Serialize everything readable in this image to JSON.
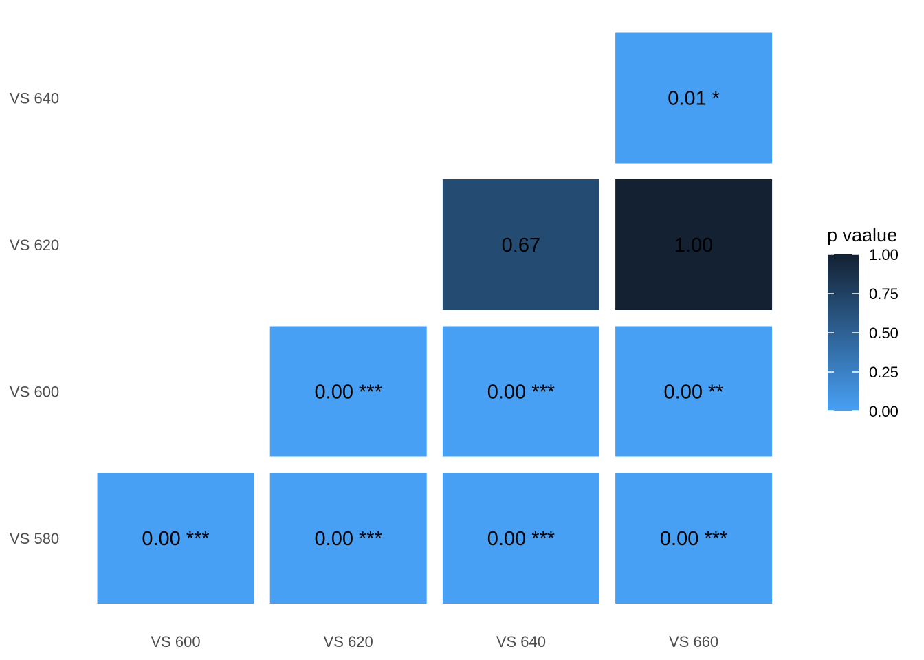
{
  "chart_data": {
    "type": "heatmap",
    "title": "",
    "xlabel": "",
    "ylabel": "",
    "x_categories": [
      "VS 600",
      "VS 620",
      "VS 640",
      "VS 660"
    ],
    "y_categories": [
      "VS 580",
      "VS 600",
      "VS 620",
      "VS 640"
    ],
    "cells": [
      {
        "x": "VS 600",
        "y": "VS 580",
        "value": 0.0,
        "label": "0.00 ***"
      },
      {
        "x": "VS 620",
        "y": "VS 580",
        "value": 0.0,
        "label": "0.00 ***"
      },
      {
        "x": "VS 640",
        "y": "VS 580",
        "value": 0.0,
        "label": "0.00 ***"
      },
      {
        "x": "VS 660",
        "y": "VS 580",
        "value": 0.0,
        "label": "0.00 ***"
      },
      {
        "x": "VS 620",
        "y": "VS 600",
        "value": 0.0,
        "label": "0.00 ***"
      },
      {
        "x": "VS 640",
        "y": "VS 600",
        "value": 0.0,
        "label": "0.00 ***"
      },
      {
        "x": "VS 660",
        "y": "VS 600",
        "value": 0.0,
        "label": "0.00 **"
      },
      {
        "x": "VS 640",
        "y": "VS 620",
        "value": 0.67,
        "label": "0.67"
      },
      {
        "x": "VS 660",
        "y": "VS 620",
        "value": 1.0,
        "label": "1.00"
      },
      {
        "x": "VS 660",
        "y": "VS 640",
        "value": 0.01,
        "label": "0.01 *"
      }
    ],
    "legend": {
      "title": "p vaalue",
      "position": "right",
      "range": [
        0,
        1
      ],
      "ticks": [
        1.0,
        0.75,
        0.5,
        0.25,
        0.0
      ],
      "tick_labels": [
        "1.00",
        "0.75",
        "0.50",
        "0.25",
        "0.00"
      ],
      "color_low": "#48a0f5",
      "color_high": "#132132"
    },
    "grid": false
  }
}
